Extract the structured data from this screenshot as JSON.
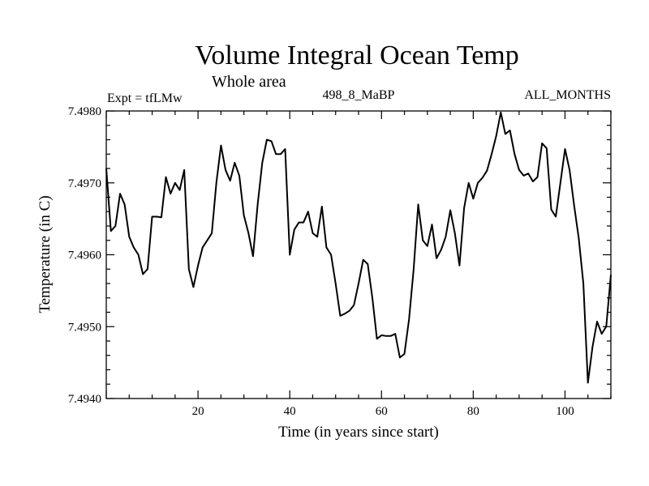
{
  "chart_data": {
    "type": "line",
    "title": "Volume Integral Ocean Temp",
    "subtitle": "Whole area",
    "left_label": "Expt = tfLMw",
    "center_label": "498_8_MaBP",
    "right_label": "ALL_MONTHS",
    "xlabel": "Time (in years since start)",
    "ylabel": "Temperature (in C)",
    "xlim": [
      0,
      110
    ],
    "ylim": [
      7.494,
      7.498
    ],
    "x_ticks": [
      20,
      40,
      60,
      80,
      100
    ],
    "x_tick_labels": [
      "20",
      "40",
      "60",
      "80",
      "100"
    ],
    "y_ticks": [
      7.494,
      7.495,
      7.496,
      7.497,
      7.498
    ],
    "y_tick_labels": [
      "7.4940",
      "7.4950",
      "7.4960",
      "7.4970",
      "7.4980"
    ],
    "series": [
      {
        "name": "Volume Integral Ocean Temp",
        "x": [
          0,
          1,
          2,
          3,
          4,
          5,
          6,
          7,
          8,
          9,
          10,
          11,
          12,
          13,
          14,
          15,
          16,
          17,
          18,
          19,
          20,
          21,
          22,
          23,
          24,
          25,
          26,
          27,
          28,
          29,
          30,
          31,
          32,
          33,
          34,
          35,
          36,
          37,
          38,
          39,
          40,
          41,
          42,
          43,
          44,
          45,
          46,
          47,
          48,
          49,
          50,
          51,
          52,
          53,
          54,
          55,
          56,
          57,
          58,
          59,
          60,
          61,
          62,
          63,
          64,
          65,
          66,
          67,
          68,
          69,
          70,
          71,
          72,
          73,
          74,
          75,
          76,
          77,
          78,
          79,
          80,
          81,
          82,
          83,
          84,
          85,
          86,
          87,
          88,
          89,
          90,
          91,
          92,
          93,
          94,
          95,
          96,
          97,
          98,
          99,
          100,
          101,
          102,
          103,
          104,
          105,
          106,
          107,
          108,
          109,
          110
        ],
        "values": [
          7.4972,
          7.49633,
          7.4964,
          7.49685,
          7.4967,
          7.49625,
          7.4961,
          7.496,
          7.49573,
          7.4958,
          7.49653,
          7.49653,
          7.49652,
          7.49708,
          7.49685,
          7.497,
          7.4969,
          7.49718,
          7.4958,
          7.49555,
          7.49585,
          7.4961,
          7.4962,
          7.4963,
          7.497,
          7.49752,
          7.49718,
          7.49703,
          7.49728,
          7.4971,
          7.49655,
          7.4963,
          7.49598,
          7.4967,
          7.49728,
          7.4976,
          7.49758,
          7.4974,
          7.4974,
          7.49747,
          7.496,
          7.49635,
          7.49645,
          7.49645,
          7.4966,
          7.4963,
          7.49625,
          7.49667,
          7.4961,
          7.496,
          7.4956,
          7.49515,
          7.49518,
          7.49522,
          7.4953,
          7.4956,
          7.49593,
          7.49587,
          7.4954,
          7.49483,
          7.49488,
          7.49487,
          7.49487,
          7.4949,
          7.49457,
          7.49462,
          7.4951,
          7.4958,
          7.4967,
          7.4962,
          7.49612,
          7.49642,
          7.49595,
          7.49607,
          7.49625,
          7.49662,
          7.4963,
          7.49585,
          7.49665,
          7.497,
          7.49678,
          7.497,
          7.49707,
          7.49717,
          7.4974,
          7.49765,
          7.49798,
          7.49768,
          7.49773,
          7.4974,
          7.49718,
          7.4971,
          7.49713,
          7.49702,
          7.49708,
          7.49755,
          7.49748,
          7.49663,
          7.49653,
          7.497,
          7.49747,
          7.49718,
          7.49668,
          7.49623,
          7.4956,
          7.49422,
          7.49472,
          7.49507,
          7.4949,
          7.495,
          7.49572
        ]
      }
    ]
  }
}
